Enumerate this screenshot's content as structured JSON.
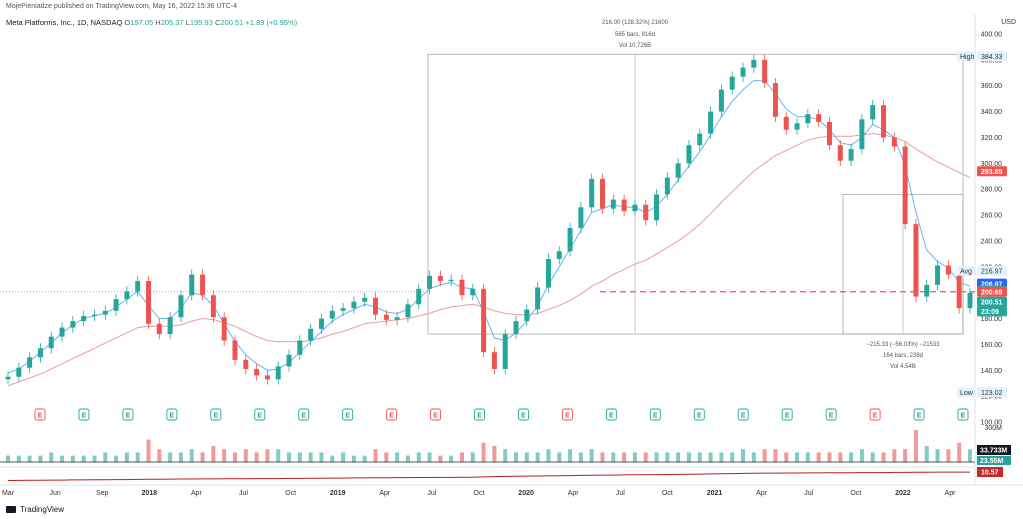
{
  "header": {
    "published": "MojePieniadze published on TradingView.com, May 16, 2022 15:36 UTC-4",
    "symbol": "Meta Platforms, Inc., 1D, NASDAQ",
    "o_label": "O",
    "o": "197.05",
    "h_label": "H",
    "h": "205.37",
    "l_label": "L",
    "l": "195.93",
    "c_label": "C",
    "c": "200.51",
    "change": "+1.89 (+0.95%)"
  },
  "footer": {
    "brand": "TradingView"
  },
  "chart_data": {
    "type": "line",
    "title": "Meta Platforms, Inc., 1D, NASDAQ",
    "currency": "USD",
    "ylim": [
      100,
      400
    ],
    "y_ticks": [
      "400.00",
      "380.00",
      "360.00",
      "340.00",
      "320.00",
      "300.00",
      "280.00",
      "260.00",
      "240.00",
      "220.00",
      "200.00",
      "180.00",
      "160.00",
      "140.00",
      "120.00",
      "100.00"
    ],
    "x_ticks": [
      "Mar",
      "Jun",
      "Sep",
      "2018",
      "Apr",
      "Jul",
      "Oct",
      "2019",
      "Apr",
      "Jul",
      "Oct",
      "2020",
      "Apr",
      "Jul",
      "Oct",
      "2021",
      "Apr",
      "Jul",
      "Oct",
      "2022",
      "Apr"
    ],
    "price": [
      135,
      142,
      150,
      157,
      166,
      173,
      178,
      182,
      183,
      186,
      195,
      201,
      209,
      176,
      168,
      181,
      198,
      214,
      198,
      181,
      163,
      148,
      141,
      136,
      133,
      143,
      152,
      163,
      172,
      180,
      186,
      188,
      193,
      196,
      183,
      179,
      181,
      191,
      203,
      213,
      209,
      210,
      198,
      203,
      154,
      141,
      168,
      178,
      187,
      204,
      226,
      232,
      250,
      266,
      288,
      265,
      272,
      263,
      268,
      256,
      276,
      289,
      300,
      314,
      323,
      340,
      357,
      367,
      374,
      380,
      362,
      336,
      326,
      331,
      338,
      332,
      314,
      302,
      311,
      334,
      345,
      320,
      313,
      253,
      197,
      206,
      221,
      214,
      188,
      200
    ],
    "ma_fast": [
      138,
      141,
      147,
      154,
      161,
      169,
      175,
      180,
      182,
      184,
      189,
      195,
      201,
      190,
      180,
      180,
      188,
      200,
      198,
      190,
      176,
      162,
      152,
      145,
      140,
      141,
      146,
      154,
      162,
      170,
      178,
      183,
      187,
      191,
      189,
      185,
      184,
      187,
      195,
      203,
      206,
      208,
      204,
      203,
      185,
      165,
      163,
      169,
      178,
      190,
      206,
      220,
      234,
      248,
      262,
      265,
      268,
      266,
      266,
      262,
      267,
      276,
      287,
      298,
      309,
      322,
      336,
      348,
      357,
      364,
      364,
      354,
      342,
      336,
      336,
      334,
      326,
      316,
      314,
      320,
      330,
      326,
      320,
      298,
      262,
      233,
      224,
      219,
      208,
      205
    ],
    "ma_slow": [
      128,
      131,
      134,
      137,
      141,
      145,
      149,
      153,
      157,
      161,
      165,
      169,
      173,
      174,
      174,
      174,
      175,
      178,
      180,
      179,
      177,
      174,
      170,
      166,
      163,
      162,
      162,
      162,
      163,
      165,
      168,
      170,
      173,
      176,
      177,
      178,
      179,
      180,
      182,
      184,
      187,
      189,
      190,
      191,
      189,
      186,
      184,
      183,
      183,
      184,
      187,
      190,
      194,
      199,
      205,
      209,
      214,
      218,
      222,
      225,
      230,
      235,
      240,
      246,
      253,
      261,
      270,
      278,
      286,
      294,
      300,
      306,
      310,
      314,
      318,
      320,
      321,
      321,
      321,
      322,
      323,
      322,
      320,
      317,
      311,
      306,
      301,
      297,
      293,
      289
    ],
    "volume": [
      2,
      2,
      2,
      2,
      3,
      2,
      2,
      2,
      2,
      3,
      2,
      3,
      3,
      7,
      4,
      3,
      3,
      4,
      3,
      5,
      4,
      3,
      4,
      3,
      4,
      4,
      3,
      3,
      3,
      3,
      2,
      3,
      2,
      2,
      4,
      3,
      3,
      2,
      3,
      3,
      2,
      2,
      3,
      3,
      6,
      5,
      4,
      3,
      3,
      3,
      4,
      3,
      4,
      3,
      4,
      3,
      3,
      3,
      3,
      3,
      3,
      3,
      3,
      3,
      3,
      3,
      3,
      3,
      4,
      3,
      4,
      4,
      3,
      3,
      3,
      3,
      3,
      3,
      3,
      4,
      3,
      3,
      4,
      4,
      10,
      5,
      4,
      4,
      6,
      4
    ],
    "volume_label": "300M",
    "indicator": [
      5.0,
      5.1,
      5.2,
      5.2,
      5.3,
      5.3,
      5.4,
      5.4,
      5.5,
      5.5,
      5.6,
      5.6,
      5.7,
      5.8,
      5.8,
      5.9,
      6.0,
      6.0,
      6.1,
      6.1,
      6.2,
      6.2,
      6.2,
      6.3,
      6.3,
      6.3,
      6.4,
      6.4,
      6.5,
      6.5,
      6.6,
      6.6,
      6.7,
      6.7,
      6.8,
      6.8,
      6.9,
      6.9,
      7.0,
      7.0,
      7.1,
      7.1,
      7.2,
      7.2,
      7.4,
      7.6,
      7.7,
      7.8,
      7.9,
      8.0,
      8.1,
      8.2,
      8.3,
      8.4,
      8.5,
      8.6,
      8.6,
      8.7,
      8.8,
      8.8,
      8.9,
      9.0,
      9.1,
      9.2,
      9.3,
      9.4,
      9.5,
      9.6,
      9.7,
      9.8,
      9.9,
      9.9,
      10.0,
      10.0,
      10.1,
      10.1,
      10.2,
      10.2,
      10.2,
      10.3,
      10.3,
      10.3,
      10.4,
      10.4,
      10.5,
      10.5,
      10.6,
      10.6,
      10.6,
      10.57
    ],
    "range_upper": {
      "text1": "216.00 (128.32%) 21600",
      "text2": "565 bars, 816d",
      "text3": "Vol 10.726B"
    },
    "range_lower": {
      "text1": "−215.33 (−56.03%) −21533",
      "text2": "164 bars, 238d",
      "text3": "Vol 4.54B"
    },
    "high": {
      "label": "High",
      "value": "384.33"
    },
    "low": {
      "label": "Low",
      "value": "123.02"
    },
    "avg": {
      "label": "Avg",
      "value": "216.97"
    },
    "price_tags": [
      {
        "value": "293.85",
        "color": "#ef5350",
        "y": 293.85
      },
      {
        "value": "206.97",
        "color": "#2962ff",
        "y": 206.97
      },
      {
        "value": "201.45",
        "color": "#26a69a",
        "y": 201.45
      },
      {
        "value": "200.69",
        "color": "#ef5350",
        "y": 200.69
      },
      {
        "value": "200.51",
        "color": "#26a69a",
        "y": 193
      },
      {
        "value": "23:09",
        "color": "#26a69a",
        "y": 185.5
      }
    ],
    "volume_tags": [
      {
        "value": "33.733M",
        "color": "#131722"
      },
      {
        "value": "23.55M",
        "color": "#26a69a"
      }
    ],
    "indicator_tag": {
      "value": "10.57",
      "color": "#c62828"
    },
    "dashed_level": 200.69,
    "earnings": [
      "E",
      "E",
      "E",
      "E",
      "E",
      "E",
      "E",
      "E",
      "E",
      "E",
      "E",
      "E",
      "E",
      "E",
      "E",
      "E",
      "E",
      "E",
      "E",
      "E",
      "E",
      "E"
    ],
    "earnings_colors": [
      "#ef5350",
      "#26a69a",
      "#26a69a",
      "#26a69a",
      "#26a69a",
      "#26a69a",
      "#26a69a",
      "#26a69a",
      "#ef5350",
      "#ef5350",
      "#26a69a",
      "#26a69a",
      "#ef5350",
      "#26a69a",
      "#26a69a",
      "#26a69a",
      "#26a69a",
      "#26a69a",
      "#26a69a",
      "#ef5350",
      "#26a69a",
      "#26a69a"
    ],
    "colors": {
      "up": "#26a69a",
      "down": "#ef5350",
      "ma_fast": "#64b5f6",
      "ma_slow": "#ef9a9a",
      "indicator": "#b71c1c",
      "frame": "#9e9e9e"
    }
  }
}
